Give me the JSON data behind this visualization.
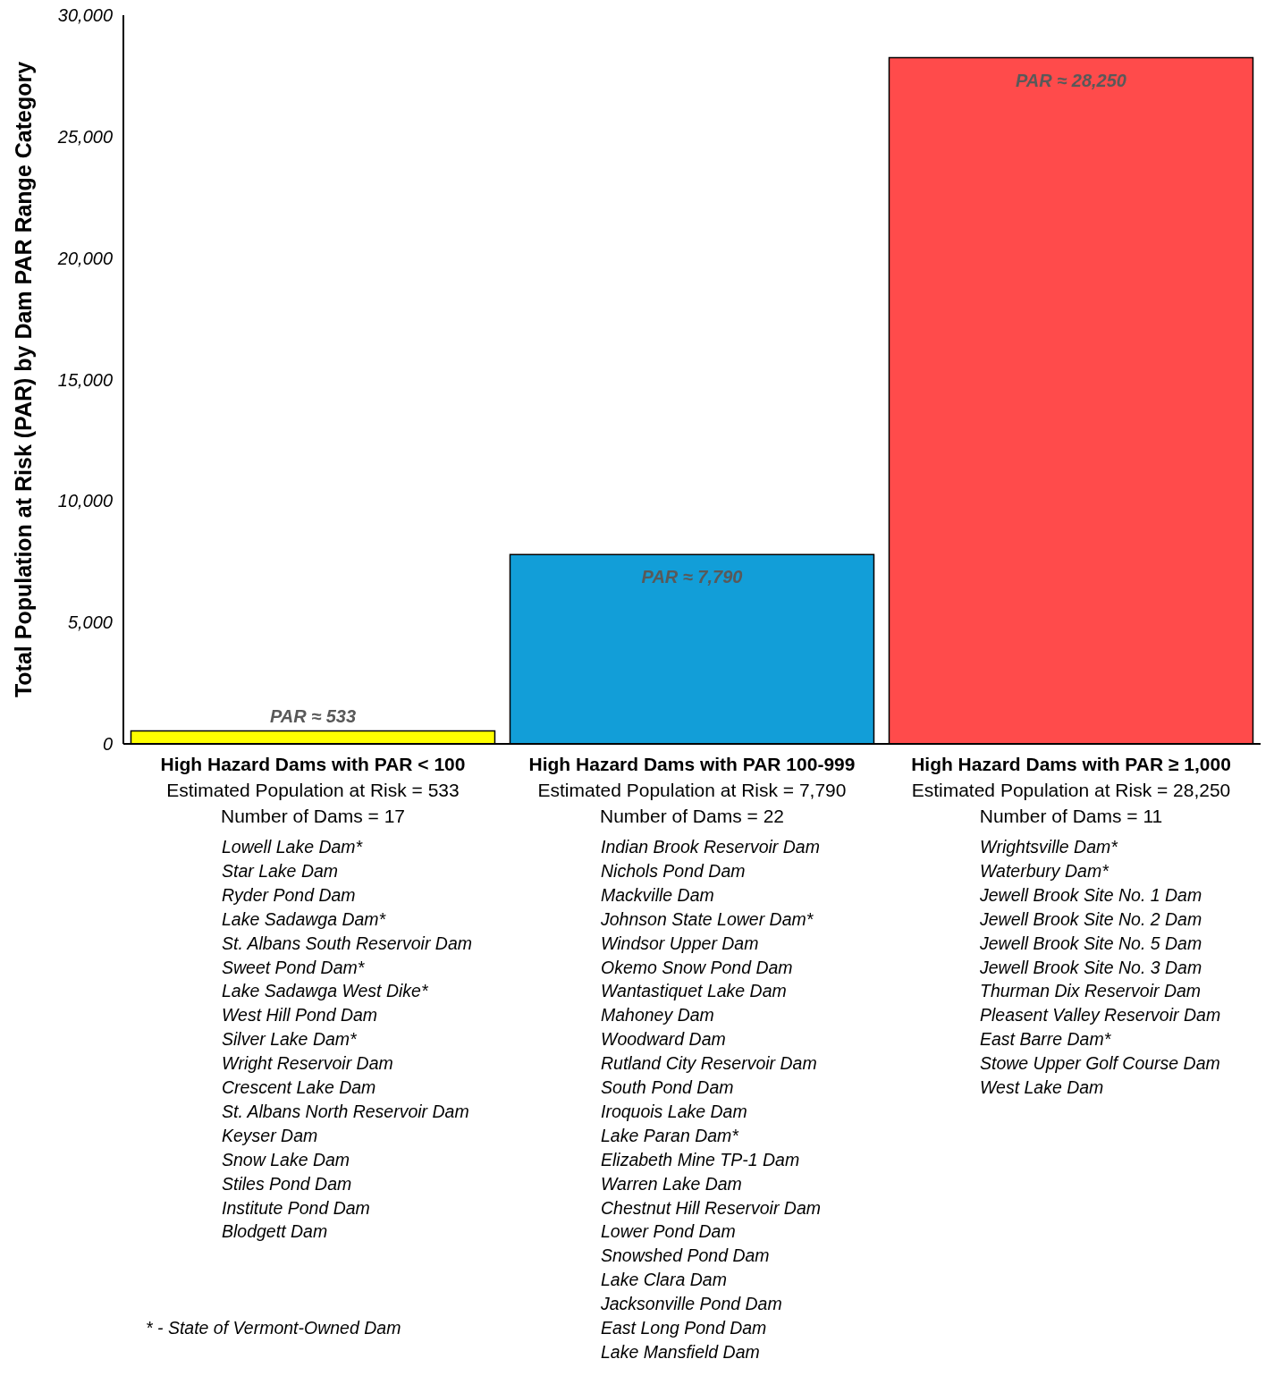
{
  "chart_data": {
    "type": "bar",
    "ylabel": "Total Population at Risk (PAR) by Dam PAR Range Category",
    "categories": [
      "High Hazard Dams with PAR < 100\nEstimated Population at Risk = 533\nNumber of Dams = 17",
      "High Hazard Dams with PAR 100-999\nEstimated Population at Risk = 7,790\nNumber of Dams = 22",
      "High Hazard Dams with PAR ≥ 1,000\nEstimated Population at Risk = 28,250\nNumber of Dams = 11"
    ],
    "values": [
      533,
      7790,
      28250
    ],
    "colors": [
      "#ffff00",
      "#129ed8",
      "#ff4b4b"
    ],
    "value_labels": [
      "PAR ≈ 533",
      "PAR ≈ 7,790",
      "PAR ≈ 28,250"
    ],
    "ylim": [
      0,
      30000
    ],
    "yticks": [
      0,
      {
        "value": 5000,
        "label": "5,000"
      },
      {
        "value": 10000,
        "label": "10,000"
      },
      {
        "value": 15000,
        "label": "15,000"
      },
      {
        "value": 20000,
        "label": "20,000"
      },
      {
        "value": 25000,
        "label": "25,000"
      },
      {
        "value": 30000,
        "label": "30,000"
      }
    ],
    "grid": false,
    "legend": false,
    "annotations": [
      "Lowell Lake Dam*\nStar Lake Dam\nRyder Pond Dam\nLake Sadawga Dam*\nSt. Albans South Reservoir Dam\nSweet Pond Dam*\nLake Sadawga West Dike*\nWest Hill Pond Dam\nSilver Lake Dam*\nWright Reservoir Dam\nCrescent Lake Dam\nSt. Albans North Reservoir Dam\nKeyser Dam\nSnow Lake Dam\nStiles Pond Dam\nInstitute Pond Dam\nBlodgett Dam",
      "Indian Brook Reservoir Dam\nNichols Pond Dam\nMackville Dam\nJohnson State Lower Dam*\nWindsor Upper Dam\nOkemo Snow Pond Dam\nWantastiquet Lake Dam\nMahoney Dam\nWoodward Dam\nRutland City Reservoir Dam\nSouth Pond Dam\nIroquois Lake Dam\nLake Paran Dam*\nElizabeth Mine TP-1 Dam\nWarren Lake Dam\nChestnut Hill Reservoir Dam\nLower Pond Dam\nSnowshed Pond Dam\nLake Clara Dam\nJacksonville Pond Dam\nEast Long Pond Dam\nLake Mansfield Dam",
      "Wrightsville Dam*\nWaterbury Dam*\nJewell Brook Site No. 1 Dam\nJewell Brook Site No. 2 Dam\nJewell Brook Site No. 5 Dam\nJewell Brook Site No. 3 Dam\nThurman Dix Reservoir Dam\nPleasent Valley Reservoir Dam\nEast Barre Dam*\nStowe Upper Golf Course Dam\nWest Lake Dam",
      "* - State of Vermont-Owned Dam"
    ]
  }
}
